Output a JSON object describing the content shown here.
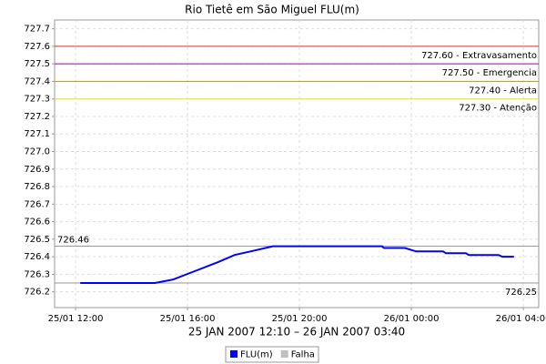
{
  "chart_data": {
    "type": "line",
    "title": "Rio Tietê em São Miguel FLU(m)",
    "subtitle": "25 JAN 2007 12:10 – 26 JAN 2007 03:40",
    "x": [
      "25/01 12:10",
      "25/01 14:50",
      "25/01 15:09",
      "25/01 15:29",
      "25/01 16:18",
      "25/01 17:06",
      "25/01 17:41",
      "25/01 18:15",
      "25/01 19:03",
      "25/01 22:57",
      "25/01 23:01",
      "25/01 23:46",
      "26/01 00:10",
      "26/01 01:08",
      "26/01 01:14",
      "26/01 01:57",
      "26/01 02:03",
      "26/01 03:07",
      "26/01 03:15",
      "26/01 03:40"
    ],
    "series": [
      {
        "name": "FLU(m)",
        "color": "#0000ff",
        "values": [
          726.25,
          726.25,
          726.26,
          726.27,
          726.32,
          726.37,
          726.41,
          726.43,
          726.46,
          726.46,
          726.45,
          726.45,
          726.43,
          726.43,
          726.42,
          726.42,
          726.41,
          726.41,
          726.4,
          726.4
        ]
      }
    ],
    "extra_legend": {
      "name": "Falha",
      "color": "#c0c0c0"
    },
    "xlim": [
      "25/01 11:15",
      "26/01 04:33"
    ],
    "xticks": [
      "25/01 12:00",
      "25/01 16:00",
      "25/01 20:00",
      "26/01 00:00",
      "26/01 04:00"
    ],
    "ylim": [
      726.11,
      727.75
    ],
    "yticks": [
      726.2,
      726.3,
      726.4,
      726.5,
      726.6,
      726.7,
      726.8,
      726.9,
      {
        "value": 727,
        "label": "727.0"
      },
      727.1,
      727.2,
      727.3,
      727.4,
      727.5,
      727.6,
      727.7
    ],
    "grid": true,
    "thresholds": [
      {
        "value": 727.6,
        "label": "727.60 - Extravasamento",
        "color": "#e03020"
      },
      {
        "value": 727.5,
        "label": "727.50 - Emergencia",
        "color": "#b000b0"
      },
      {
        "value": 727.4,
        "label": "727.40 - Alerta",
        "color": "#f09000"
      },
      {
        "value": 727.3,
        "label": "727.30 - Atenção",
        "color": "#f0e000"
      }
    ],
    "max_marker": {
      "value": 726.46,
      "label": "726.46",
      "color": "#999999"
    },
    "min_marker": {
      "value": 726.25,
      "label": "726.25",
      "color": "#999999"
    }
  }
}
